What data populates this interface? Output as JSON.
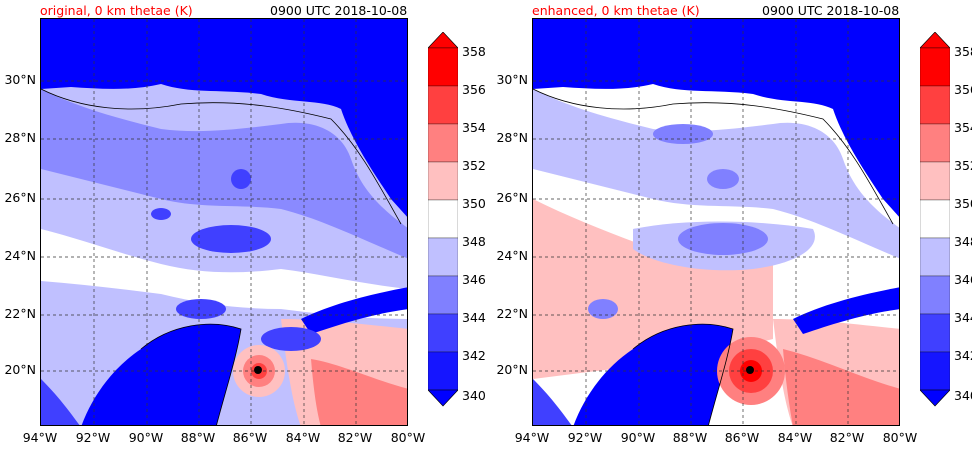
{
  "panels": [
    {
      "title": "original, 0 km thetae (K)",
      "time": "0900 UTC 2018-10-08"
    },
    {
      "title": "enhanced, 0 km thetae (K)",
      "time": "0900 UTC 2018-10-08"
    }
  ],
  "lat_ticks": [
    "30°N",
    "28°N",
    "26°N",
    "24°N",
    "22°N",
    "20°N"
  ],
  "lon_ticks": [
    "94°W",
    "92°W",
    "90°W",
    "88°W",
    "86°W",
    "84°W",
    "82°W",
    "80°W"
  ],
  "colorbar": {
    "levels": [
      "358",
      "356",
      "354",
      "352",
      "350",
      "348",
      "346",
      "344",
      "342",
      "340"
    ],
    "colors": [
      "#ff0000",
      "#ff4040",
      "#ff8080",
      "#ffc0c0",
      "#ffffff",
      "#c0c0ff",
      "#8080ff",
      "#4040ff",
      "#1515ff",
      "#0000ff"
    ],
    "extend": "both"
  },
  "colors": {
    "title_accent": "#ff0000",
    "ocean_base": "#c0c0ff",
    "land_cold": "#0000ff",
    "warm_core": "#ff4040"
  }
}
